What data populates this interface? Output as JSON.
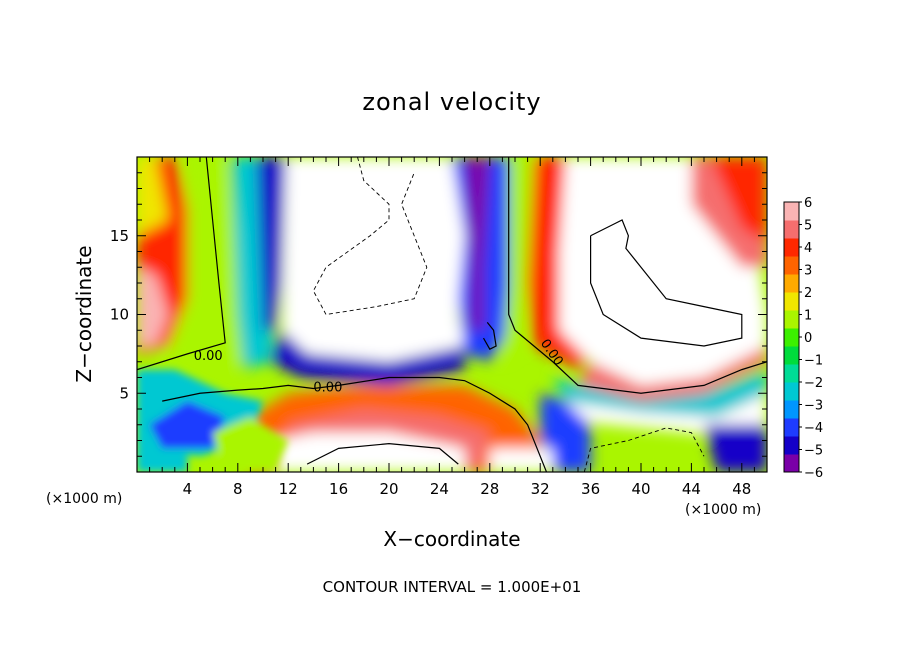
{
  "chart_data": {
    "type": "heatmap",
    "title": "zonal velocity",
    "xlabel": "X−coordinate",
    "ylabel": "Z−coordinate",
    "x_unit_left": "(×1000 m)",
    "x_unit_right": "(×1000 m)",
    "footer": "CONTOUR INTERVAL = 1.000E+01",
    "xlim": [
      0,
      50
    ],
    "ylim": [
      0,
      20
    ],
    "x_ticks": [
      "4",
      "8",
      "12",
      "16",
      "20",
      "24",
      "28",
      "32",
      "36",
      "40",
      "44",
      "48"
    ],
    "y_ticks": [
      "5",
      "10",
      "15"
    ],
    "contour_labels": [
      "0.00",
      "0.00",
      "0.00"
    ],
    "colorbar": {
      "ticks": [
        "6",
        "5",
        "4",
        "3",
        "2",
        "1",
        "0",
        "−1",
        "−2",
        "−3",
        "−4",
        "−5",
        "−6"
      ],
      "range": [
        -6,
        6
      ],
      "colors": [
        "#7a00a8",
        "#1400c8",
        "#1e3cff",
        "#0096ff",
        "#00c8d2",
        "#00dc96",
        "#00dc3c",
        "#3cf000",
        "#aaf500",
        "#f0e600",
        "#ffaa00",
        "#ff6400",
        "#ff2800",
        "#f56e6e",
        "#fab4b4"
      ]
    },
    "regions_note": "values beyond colorbar range shown white"
  }
}
